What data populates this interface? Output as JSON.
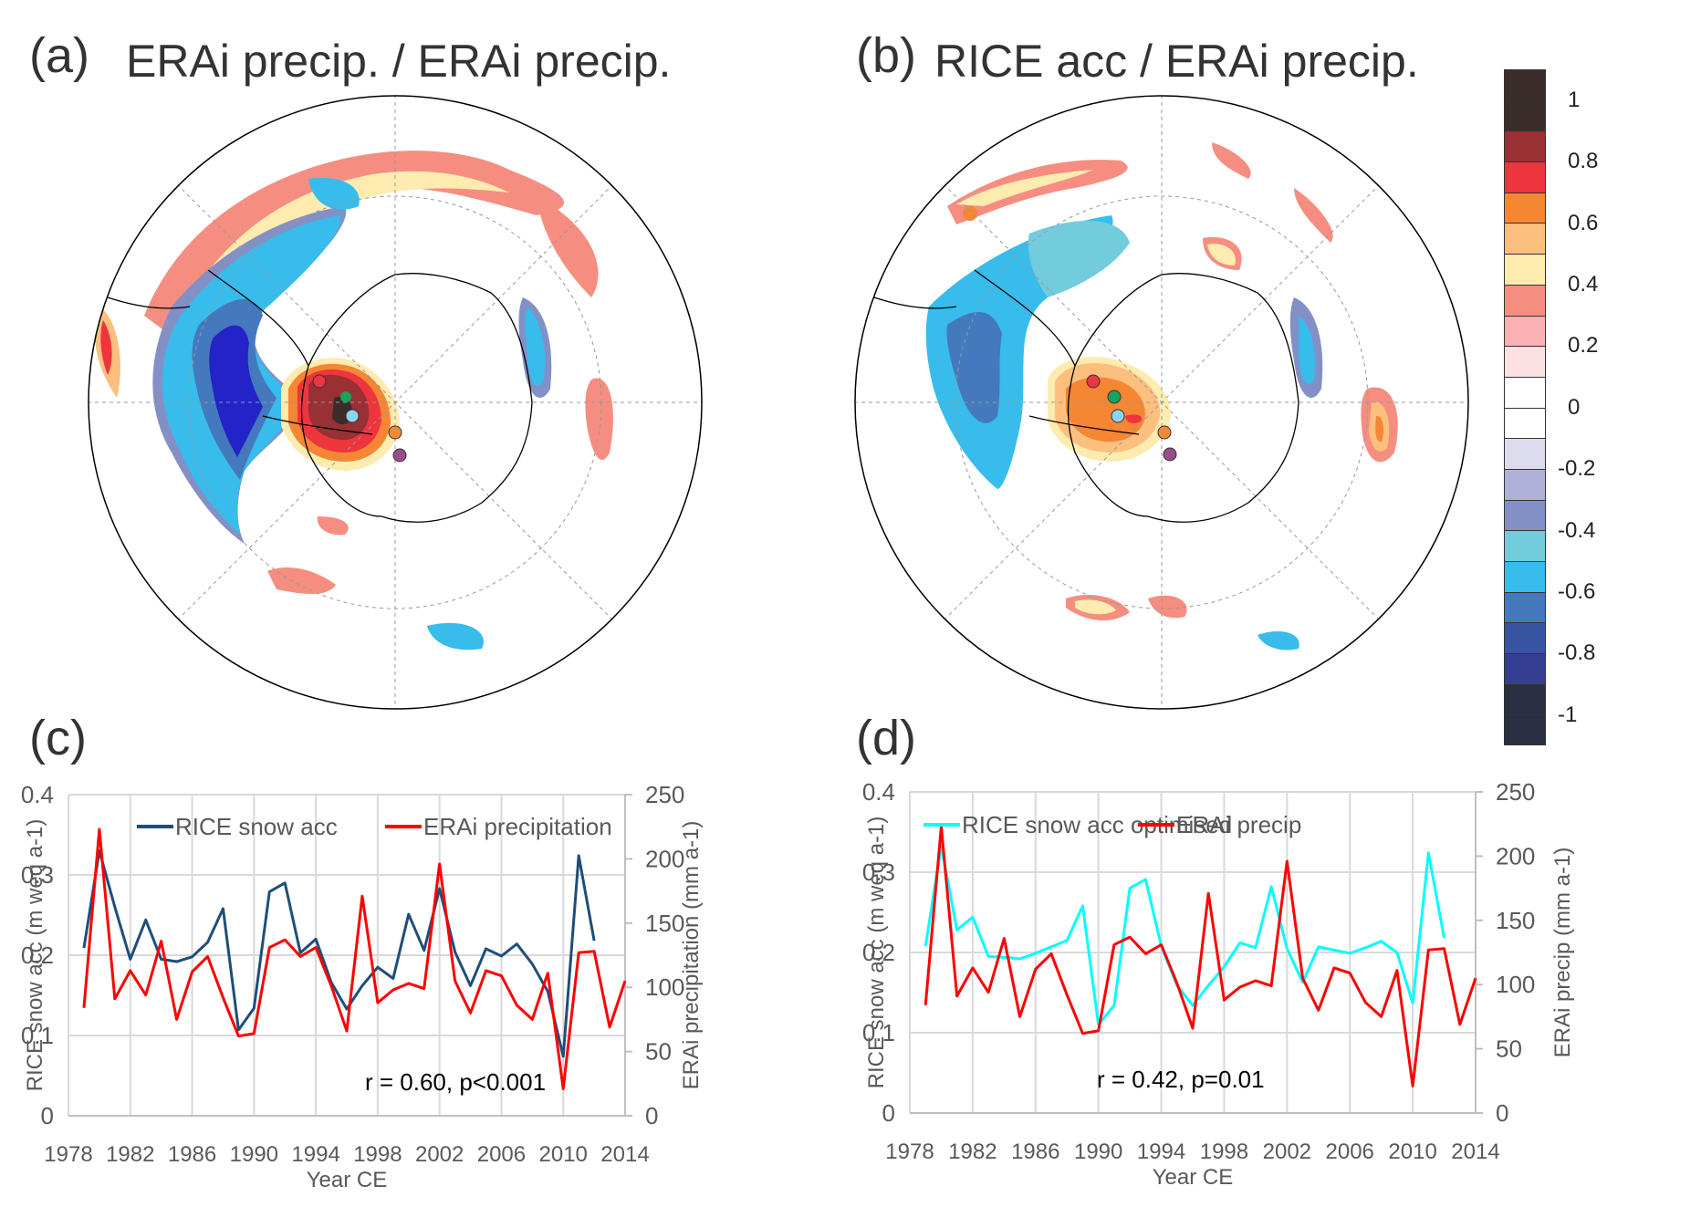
{
  "panels": {
    "a": {
      "letter": "(a)",
      "title": "ERAi precip. / ERAi precip."
    },
    "b": {
      "letter": "(b)",
      "title": "RICE acc / ERAi precip."
    },
    "c": {
      "letter": "(c)"
    },
    "d": {
      "letter": "(d)"
    }
  },
  "colorbar": {
    "labels": [
      "1",
      "0.8",
      "0.6",
      "0.4",
      "0.2",
      "0",
      "-0.2",
      "-0.4",
      "-0.6",
      "-0.8",
      "-1"
    ],
    "colors": [
      "#3a2c2a",
      "#3a2c2a",
      "#983034",
      "#ee343c",
      "#f48634",
      "#fcbf7e",
      "#feebb0",
      "#f58e80",
      "#f9b1b3",
      "#fde0e2",
      "#ffffff",
      "#ffffff",
      "#dddcef",
      "#b0b1d8",
      "#8390c6",
      "#72ccdc",
      "#37bcec",
      "#4479bd",
      "#3755a3",
      "#353f92",
      "#2a2e42",
      "#2a2e42"
    ]
  },
  "maps": {
    "stations": [
      {
        "name": "red-station",
        "color": "#e8393e"
      },
      {
        "name": "green-station",
        "color": "#1aa35b"
      },
      {
        "name": "lightblue-station",
        "color": "#8fd3f4"
      },
      {
        "name": "orange-station",
        "color": "#ee8a3a"
      },
      {
        "name": "purple-station",
        "color": "#9a4d8c"
      }
    ]
  },
  "chart_data": [
    {
      "type": "line",
      "panel": "c",
      "xlabel": "Year CE",
      "ylabel": "RICE snow acc (m weq a-1)",
      "ylabel_right": "ERAi precipitation (mm a-1)",
      "xticks": [
        "1978",
        "1982",
        "1986",
        "1990",
        "1994",
        "1998",
        "2002",
        "2006",
        "2010",
        "2014"
      ],
      "yticks": [
        "0",
        "0.1",
        "0.2",
        "0.3",
        "0.4"
      ],
      "yticks_right": [
        "0",
        "50",
        "100",
        "150",
        "200",
        "250"
      ],
      "xlim": [
        1978,
        2014
      ],
      "ylim": [
        0,
        0.4
      ],
      "ylim_right": [
        0,
        250
      ],
      "grid": true,
      "legend_position": "top",
      "annotation": "r = 0.60, p<0.001",
      "series": [
        {
          "name": "RICE  snow acc",
          "axis": "left",
          "color": "#1f4e79",
          "x": [
            1979,
            1980,
            1981,
            1982,
            1983,
            1984,
            1985,
            1986,
            1987,
            1988,
            1989,
            1990,
            1991,
            1992,
            1993,
            1994,
            1995,
            1996,
            1997,
            1998,
            1999,
            2000,
            2001,
            2002,
            2003,
            2004,
            2005,
            2006,
            2007,
            2008,
            2009,
            2010,
            2011,
            2012
          ],
          "values": [
            0.209,
            0.33,
            0.26,
            0.195,
            0.244,
            0.195,
            0.192,
            0.198,
            0.216,
            0.258,
            0.107,
            0.134,
            0.279,
            0.29,
            0.203,
            0.22,
            0.166,
            0.133,
            0.162,
            0.185,
            0.171,
            0.251,
            0.206,
            0.283,
            0.204,
            0.162,
            0.208,
            0.199,
            0.214,
            0.189,
            0.155,
            0.074,
            0.324,
            0.218
          ]
        },
        {
          "name": "ERAi precipitation",
          "axis": "right",
          "color": "#ff0000",
          "x": [
            1979,
            1980,
            1981,
            1982,
            1983,
            1984,
            1985,
            1986,
            1987,
            1988,
            1989,
            1990,
            1991,
            1992,
            1993,
            1994,
            1995,
            1996,
            1997,
            1998,
            1999,
            2000,
            2001,
            2002,
            2003,
            2004,
            2005,
            2006,
            2007,
            2008,
            2009,
            2010,
            2011,
            2012,
            2013,
            2014
          ],
          "values": [
            84,
            223,
            91,
            113,
            94,
            136,
            75,
            112,
            124,
            92,
            62,
            64,
            131,
            137,
            124,
            131,
            101,
            66,
            171,
            88,
            98,
            103,
            99,
            196,
            105,
            80,
            113,
            109,
            86,
            75,
            111,
            21,
            127,
            128,
            69,
            105
          ]
        }
      ]
    },
    {
      "type": "line",
      "panel": "d",
      "xlabel": "Year CE",
      "ylabel": "RICE snow acc (m weq a-1)",
      "ylabel_right": "ERAi precip (mm a-1)",
      "xticks": [
        "1978",
        "1982",
        "1986",
        "1990",
        "1994",
        "1998",
        "2002",
        "2006",
        "2010",
        "2014"
      ],
      "yticks": [
        "0",
        "0.1",
        "0.2",
        "0.3",
        "0.4"
      ],
      "yticks_right": [
        "0",
        "50",
        "100",
        "150",
        "200",
        "250"
      ],
      "xlim": [
        1978,
        2014
      ],
      "ylim": [
        0,
        0.4
      ],
      "ylim_right": [
        0,
        250
      ],
      "grid": true,
      "legend_position": "top",
      "annotation": "r = 0.42, p=0.01",
      "series": [
        {
          "name": "RICE  snow acc optimised",
          "axis": "left",
          "color": "#00ffff",
          "x": [
            1979,
            1980,
            1981,
            1982,
            1983,
            1984,
            1985,
            1986,
            1987,
            1988,
            1989,
            1990,
            1991,
            1992,
            1993,
            1994,
            1995,
            1996,
            1997,
            1998,
            1999,
            2000,
            2001,
            2002,
            2003,
            2004,
            2005,
            2006,
            2007,
            2008,
            2009,
            2010,
            2011,
            2012
          ],
          "values": [
            0.208,
            0.333,
            0.228,
            0.244,
            0.195,
            0.194,
            0.192,
            0.199,
            0.207,
            0.215,
            0.258,
            0.11,
            0.134,
            0.28,
            0.291,
            0.208,
            0.159,
            0.134,
            0.159,
            0.182,
            0.212,
            0.206,
            0.282,
            0.205,
            0.163,
            0.207,
            0.203,
            0.199,
            0.206,
            0.214,
            0.2,
            0.137,
            0.324,
            0.218
          ]
        },
        {
          "name": "ERAi precip",
          "axis": "right",
          "color": "#ff0000",
          "x": [
            1979,
            1980,
            1981,
            1982,
            1983,
            1984,
            1985,
            1986,
            1987,
            1988,
            1989,
            1990,
            1991,
            1992,
            1993,
            1994,
            1995,
            1996,
            1997,
            1998,
            1999,
            2000,
            2001,
            2002,
            2003,
            2004,
            2005,
            2006,
            2007,
            2008,
            2009,
            2010,
            2011,
            2012,
            2013,
            2014
          ],
          "values": [
            84,
            223,
            91,
            113,
            94,
            136,
            75,
            112,
            124,
            92,
            62,
            64,
            131,
            137,
            124,
            131,
            101,
            66,
            171,
            88,
            98,
            103,
            99,
            196,
            105,
            80,
            113,
            109,
            86,
            75,
            111,
            21,
            127,
            128,
            69,
            105
          ]
        }
      ]
    }
  ]
}
